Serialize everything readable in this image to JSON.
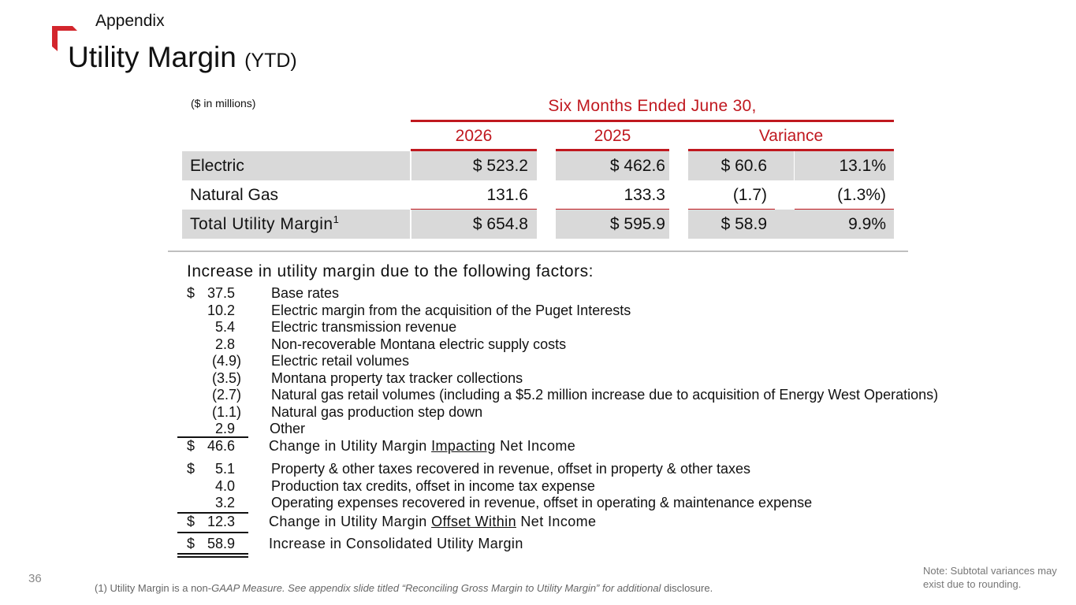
{
  "header": {
    "section_label": "Appendix",
    "title_main": "Utility Margin",
    "title_suffix": "(YTD)"
  },
  "table": {
    "units": "($ in millions)",
    "period_header": "Six Months Ended June 30,",
    "columns": [
      "2026",
      "2025",
      "Variance"
    ],
    "rows": [
      {
        "label": "Electric",
        "y2026": "$ 523.2",
        "y2025": "$ 462.6",
        "variance": "$ 60.6",
        "variance_pct": "13.1%"
      },
      {
        "label": "Natural Gas",
        "y2026": "131.6",
        "y2025": "133.3",
        "variance": "(1.7)",
        "variance_pct": "(1.3%)"
      },
      {
        "label": "Total Utility Margin",
        "label_sup": "1",
        "y2026": "$ 654.8",
        "y2025": "$ 595.9",
        "variance": "$ 58.9",
        "variance_pct": "9.9%"
      }
    ]
  },
  "factors": {
    "title": "Increase in utility margin due to the following factors:",
    "impacting": [
      {
        "dollar": "$",
        "amount": "37.5",
        "description": "Base rates"
      },
      {
        "dollar": "",
        "amount": "10.2",
        "description": "Electric margin from the acquisition of the Puget Interests"
      },
      {
        "dollar": "",
        "amount": "5.4",
        "description": "Electric transmission revenue"
      },
      {
        "dollar": "",
        "amount": "2.8",
        "description": "Non-recoverable Montana electric supply costs"
      },
      {
        "dollar": "",
        "amount": "(4.9)",
        "description": "Electric retail volumes"
      },
      {
        "dollar": "",
        "amount": "(3.5)",
        "description": "Montana property tax tracker collections"
      },
      {
        "dollar": "",
        "amount": "(2.7)",
        "description": "Natural gas retail volumes (including a $5.2 million increase due to acquisition of Energy West Operations)"
      },
      {
        "dollar": "",
        "amount": "(1.1)",
        "description": "Natural gas production step down"
      },
      {
        "dollar": "",
        "amount": "2.9",
        "description": "Other"
      }
    ],
    "impacting_subtotal": {
      "dollar": "$",
      "amount": "46.6",
      "desc_pre": "Change in Utility Margin ",
      "desc_underlined": "Impacting",
      "desc_post": " Net Income"
    },
    "offset": [
      {
        "dollar": "$",
        "amount": "5.1",
        "description": "Property & other taxes recovered in revenue, offset in property & other taxes"
      },
      {
        "dollar": "",
        "amount": "4.0",
        "description": "Production tax credits, offset in income tax expense"
      },
      {
        "dollar": "",
        "amount": "3.2",
        "description": "Operating expenses recovered in revenue, offset in operating & maintenance expense"
      }
    ],
    "offset_subtotal": {
      "dollar": "$",
      "amount": "12.3",
      "desc_pre": "Change in Utility Margin ",
      "desc_underlined": "Offset Within",
      "desc_post": " Net Income"
    },
    "total": {
      "dollar": "$",
      "amount": "58.9",
      "description": "Increase in Consolidated Utility Margin"
    }
  },
  "footer": {
    "page_number": "36",
    "footnote_pre": "(1) Utility Margin is a non-",
    "footnote_italic": "GAAP Measure. See appendix slide titled “Reconciling Gross Margin to Utility Margin” for additional",
    "footnote_post": " disclosure.",
    "note": "Note: Subtotal variances may exist due to rounding."
  },
  "colors": {
    "accent_red": "#c0181f",
    "shade_gray": "#d9d9d9"
  }
}
